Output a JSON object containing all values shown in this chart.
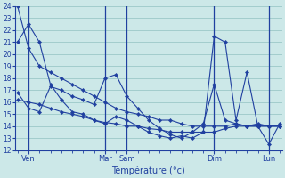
{
  "title": "Température (°c)",
  "background_color": "#cce8e8",
  "grid_color": "#9cc8c8",
  "line_color": "#2040a0",
  "ylim": [
    12,
    24
  ],
  "yticks": [
    12,
    13,
    14,
    15,
    16,
    17,
    18,
    19,
    20,
    21,
    22,
    23,
    24
  ],
  "day_labels": [
    "Ven",
    "Mar",
    "Sam",
    "Dim",
    "Lun"
  ],
  "day_positions": [
    1,
    8,
    10,
    18,
    23
  ],
  "vline_positions": [
    1,
    8,
    10,
    18,
    23
  ],
  "n_points": 25,
  "series1": [
    24.0,
    20.5,
    19.0,
    18.5,
    18.0,
    17.5,
    17.0,
    16.5,
    16.0,
    15.5,
    15.2,
    15.0,
    14.8,
    14.5,
    14.5,
    14.2,
    14.0,
    14.0,
    14.0,
    14.0,
    14.2,
    14.0,
    14.2,
    14.0,
    14.0
  ],
  "series2": [
    16.8,
    15.5,
    15.2,
    17.3,
    17.0,
    16.5,
    16.2,
    15.8,
    18.0,
    18.3,
    16.5,
    15.5,
    14.5,
    13.8,
    13.3,
    13.0,
    13.5,
    14.2,
    17.5,
    14.5,
    14.2,
    14.0,
    14.0,
    14.0,
    14.0
  ],
  "series3": [
    21.0,
    22.5,
    21.0,
    17.5,
    16.2,
    15.2,
    15.0,
    14.5,
    14.2,
    14.8,
    14.5,
    14.0,
    13.5,
    13.2,
    13.0,
    13.2,
    13.0,
    13.5,
    21.5,
    21.0,
    14.5,
    18.5,
    14.0,
    12.5,
    14.2
  ],
  "series4": [
    16.2,
    16.0,
    15.8,
    15.5,
    15.2,
    15.0,
    14.8,
    14.5,
    14.3,
    14.2,
    14.0,
    14.0,
    13.8,
    13.7,
    13.5,
    13.5,
    13.5,
    13.5,
    13.5,
    13.8,
    14.0,
    14.0,
    14.0,
    14.0,
    14.0
  ]
}
